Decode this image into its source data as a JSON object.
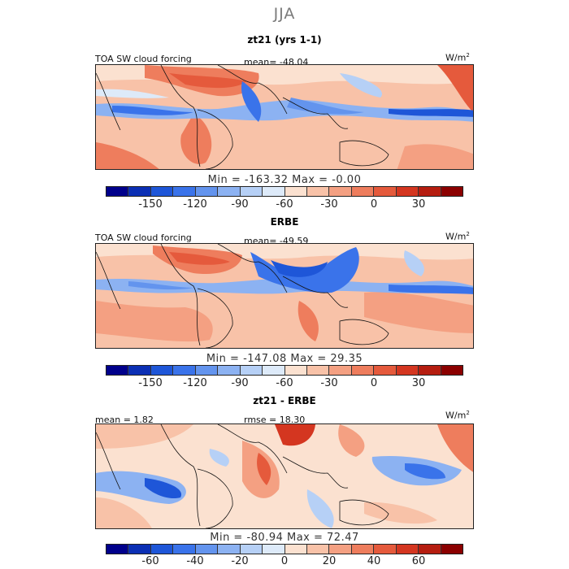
{
  "figure": {
    "season": "JJA"
  },
  "panels": [
    {
      "title": "zt21 (yrs 1-1)",
      "left_label": "TOA SW cloud forcing",
      "center_label": "mean=  -48.04",
      "unit": "W/m",
      "unit_sup": "2",
      "min_max": "Min = -163.32 Max =  -0.00",
      "colorbar": {
        "ticks": [
          "-150",
          "-120",
          "-90",
          "-60",
          "-30",
          "0",
          "30"
        ],
        "colors": [
          "#00008b",
          "#0b2fb4",
          "#1e56d8",
          "#3a73ea",
          "#6394ee",
          "#8cb2f2",
          "#b6d0f6",
          "#ddeaf9",
          "#fbe1d0",
          "#f8c2a8",
          "#f4a082",
          "#ee7d5d",
          "#e55a3c",
          "#d43620",
          "#b51d10",
          "#8b0000"
        ]
      }
    },
    {
      "title": "ERBE",
      "left_label": "TOA SW cloud forcing",
      "center_label": "mean=  -49.59",
      "unit": "W/m",
      "unit_sup": "2",
      "min_max": "Min = -147.08 Max =  29.35",
      "colorbar": {
        "ticks": [
          "-150",
          "-120",
          "-90",
          "-60",
          "-30",
          "0",
          "30"
        ],
        "colors": [
          "#00008b",
          "#0b2fb4",
          "#1e56d8",
          "#3a73ea",
          "#6394ee",
          "#8cb2f2",
          "#b6d0f6",
          "#ddeaf9",
          "#fbe1d0",
          "#f8c2a8",
          "#f4a082",
          "#ee7d5d",
          "#e55a3c",
          "#d43620",
          "#b51d10",
          "#8b0000"
        ]
      }
    },
    {
      "title": "zt21 - ERBE",
      "left_label": "mean =   1.82",
      "center_label": "rmse =  18.30",
      "unit": "W/m",
      "unit_sup": "2",
      "min_max": "Min = -80.94 Max =  72.47",
      "colorbar": {
        "ticks": [
          "-60",
          "-40",
          "-20",
          "0",
          "20",
          "40",
          "60"
        ],
        "colors": [
          "#00008b",
          "#0b2fb4",
          "#1e56d8",
          "#3a73ea",
          "#6394ee",
          "#8cb2f2",
          "#b6d0f6",
          "#ddeaf9",
          "#fbe1d0",
          "#f8c2a8",
          "#f4a082",
          "#ee7d5d",
          "#e55a3c",
          "#d43620",
          "#b51d10",
          "#8b0000"
        ]
      }
    }
  ]
}
